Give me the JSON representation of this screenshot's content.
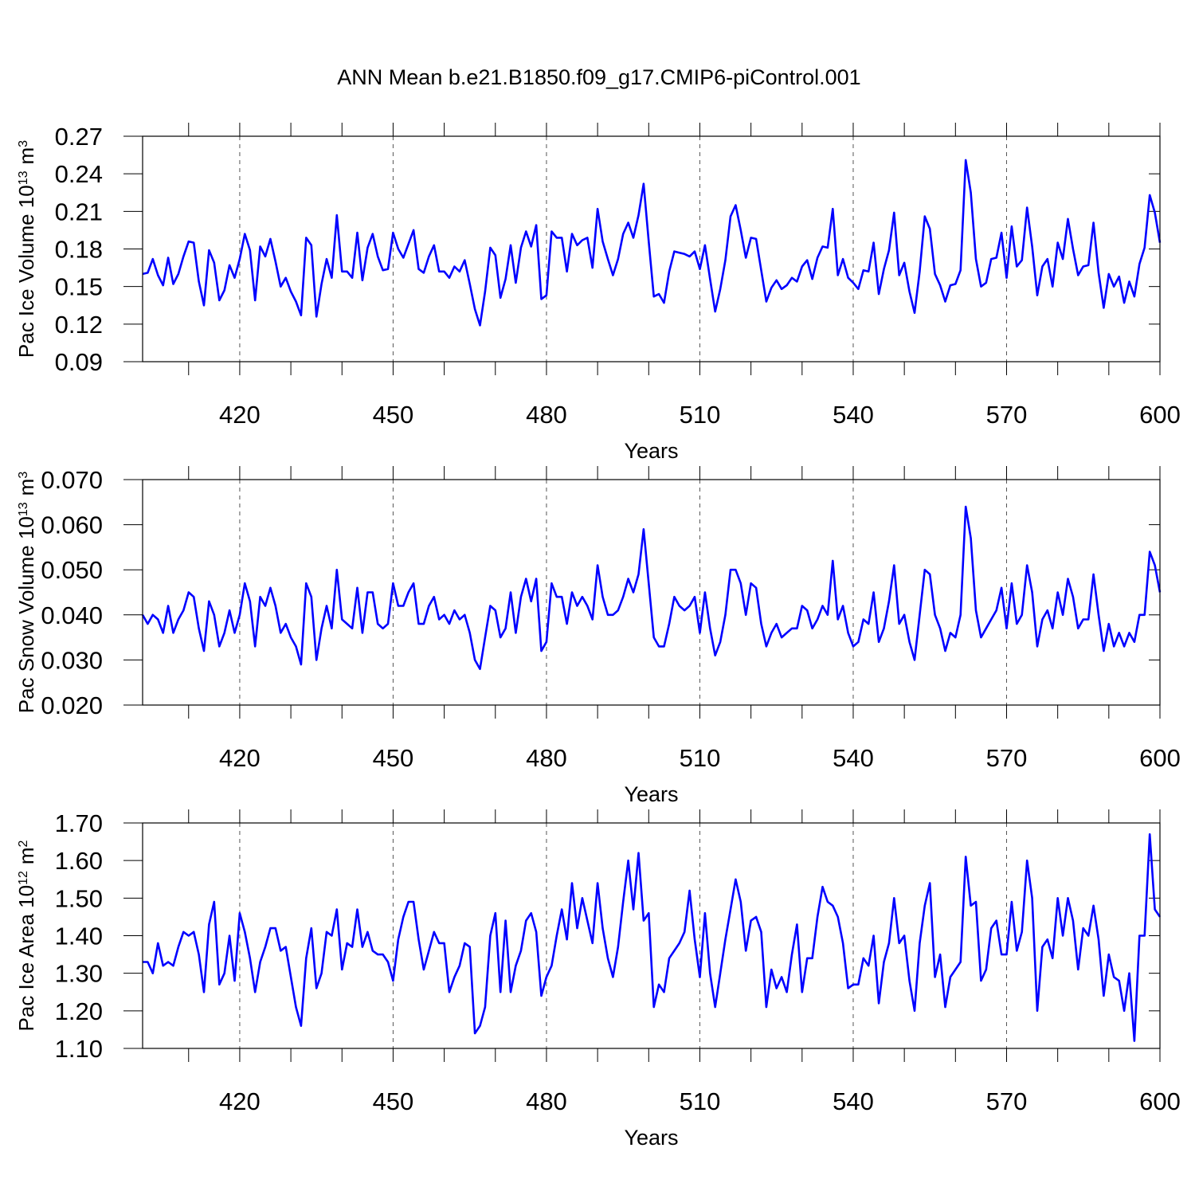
{
  "chart_data": [
    {
      "type": "line",
      "title": "ANN Mean b.e21.B1850.f09_g17.CMIP6-piControl.001",
      "ylabel": [
        "Pac Ice Volume 10",
        "13",
        "m",
        "3"
      ],
      "xlabel": "Years",
      "color": "#0000ff",
      "xgrid": true,
      "xlim": [
        401,
        600
      ],
      "xticks": [
        420,
        450,
        480,
        510,
        540,
        570,
        600
      ],
      "xminorticks": [
        410,
        430,
        440,
        460,
        470,
        490,
        500,
        520,
        530,
        550,
        560,
        580,
        590
      ],
      "ylim": [
        0.09,
        0.27
      ],
      "yticks": [
        0.09,
        0.12,
        0.15,
        0.18,
        0.21,
        0.24,
        0.27
      ],
      "x": [
        401,
        402,
        403,
        404,
        405,
        406,
        407,
        408,
        409,
        410,
        411,
        412,
        413,
        414,
        415,
        416,
        417,
        418,
        419,
        420,
        421,
        422,
        423,
        424,
        425,
        426,
        427,
        428,
        429,
        430,
        431,
        432,
        433,
        434,
        435,
        436,
        437,
        438,
        439,
        440,
        441,
        442,
        443,
        444,
        445,
        446,
        447,
        448,
        449,
        450,
        451,
        452,
        453,
        454,
        455,
        456,
        457,
        458,
        459,
        460,
        461,
        462,
        463,
        464,
        465,
        466,
        467,
        468,
        469,
        470,
        471,
        472,
        473,
        474,
        475,
        476,
        477,
        478,
        479,
        480,
        481,
        482,
        483,
        484,
        485,
        486,
        487,
        488,
        489,
        490,
        491,
        492,
        493,
        494,
        495,
        496,
        497,
        498,
        499,
        500,
        501,
        502,
        503,
        504,
        505,
        506,
        507,
        508,
        509,
        510,
        511,
        512,
        513,
        514,
        515,
        516,
        517,
        518,
        519,
        520,
        521,
        522,
        523,
        524,
        525,
        526,
        527,
        528,
        529,
        530,
        531,
        532,
        533,
        534,
        535,
        536,
        537,
        538,
        539,
        540,
        541,
        542,
        543,
        544,
        545,
        546,
        547,
        548,
        549,
        550,
        551,
        552,
        553,
        554,
        555,
        556,
        557,
        558,
        559,
        560,
        561,
        562,
        563,
        564,
        565,
        566,
        567,
        568,
        569,
        570,
        571,
        572,
        573,
        574,
        575,
        576,
        577,
        578,
        579,
        580,
        581,
        582,
        583,
        584,
        585,
        586,
        587,
        588,
        589,
        590,
        591,
        592,
        593,
        594,
        595,
        596,
        597,
        598,
        599,
        600
      ],
      "values": [
        0.16,
        0.161,
        0.172,
        0.159,
        0.151,
        0.173,
        0.152,
        0.16,
        0.174,
        0.186,
        0.185,
        0.154,
        0.135,
        0.179,
        0.169,
        0.139,
        0.147,
        0.167,
        0.157,
        0.172,
        0.192,
        0.179,
        0.139,
        0.182,
        0.174,
        0.188,
        0.17,
        0.15,
        0.157,
        0.146,
        0.138,
        0.127,
        0.189,
        0.183,
        0.126,
        0.152,
        0.172,
        0.157,
        0.207,
        0.162,
        0.162,
        0.157,
        0.193,
        0.155,
        0.181,
        0.192,
        0.174,
        0.163,
        0.164,
        0.193,
        0.18,
        0.173,
        0.184,
        0.195,
        0.164,
        0.161,
        0.174,
        0.183,
        0.162,
        0.162,
        0.157,
        0.166,
        0.162,
        0.171,
        0.152,
        0.132,
        0.119,
        0.146,
        0.181,
        0.175,
        0.141,
        0.156,
        0.183,
        0.153,
        0.181,
        0.194,
        0.182,
        0.199,
        0.14,
        0.143,
        0.194,
        0.189,
        0.189,
        0.162,
        0.192,
        0.183,
        0.187,
        0.189,
        0.165,
        0.212,
        0.186,
        0.172,
        0.159,
        0.172,
        0.192,
        0.201,
        0.189,
        0.207,
        0.232,
        0.186,
        0.142,
        0.144,
        0.137,
        0.162,
        0.178,
        0.177,
        0.176,
        0.174,
        0.178,
        0.164,
        0.183,
        0.156,
        0.13,
        0.148,
        0.171,
        0.206,
        0.215,
        0.195,
        0.173,
        0.189,
        0.188,
        0.163,
        0.138,
        0.149,
        0.155,
        0.148,
        0.151,
        0.157,
        0.154,
        0.166,
        0.171,
        0.156,
        0.173,
        0.182,
        0.181,
        0.212,
        0.159,
        0.172,
        0.157,
        0.153,
        0.148,
        0.163,
        0.162,
        0.185,
        0.144,
        0.164,
        0.179,
        0.209,
        0.159,
        0.169,
        0.146,
        0.129,
        0.162,
        0.206,
        0.196,
        0.16,
        0.151,
        0.138,
        0.151,
        0.152,
        0.163,
        0.251,
        0.225,
        0.172,
        0.15,
        0.153,
        0.172,
        0.173,
        0.193,
        0.157,
        0.198,
        0.166,
        0.171,
        0.213,
        0.182,
        0.143,
        0.166,
        0.172,
        0.15,
        0.185,
        0.172,
        0.204,
        0.18,
        0.159,
        0.166,
        0.167,
        0.201,
        0.161,
        0.133,
        0.16,
        0.15,
        0.158,
        0.137,
        0.154,
        0.142,
        0.168,
        0.181,
        0.223,
        0.209,
        0.185
      ]
    },
    {
      "type": "line",
      "ylabel": [
        "Pac Snow Volume 10",
        "13",
        "m",
        "3"
      ],
      "xlabel": "Years",
      "color": "#0000ff",
      "xgrid": true,
      "xlim": [
        401,
        600
      ],
      "xticks": [
        420,
        450,
        480,
        510,
        540,
        570,
        600
      ],
      "xminorticks": [
        410,
        430,
        440,
        460,
        470,
        490,
        500,
        520,
        530,
        550,
        560,
        580,
        590
      ],
      "ylim": [
        0.02,
        0.07
      ],
      "yticks": [
        {
          "value": 0.02,
          "label": "0.020"
        },
        {
          "value": 0.03,
          "label": "0.030"
        },
        {
          "value": 0.04,
          "label": "0.040"
        },
        {
          "value": 0.05,
          "label": "0.050"
        },
        {
          "value": 0.06,
          "label": "0.060"
        },
        {
          "value": 0.07,
          "label": "0.070"
        }
      ],
      "x": [
        401,
        402,
        403,
        404,
        405,
        406,
        407,
        408,
        409,
        410,
        411,
        412,
        413,
        414,
        415,
        416,
        417,
        418,
        419,
        420,
        421,
        422,
        423,
        424,
        425,
        426,
        427,
        428,
        429,
        430,
        431,
        432,
        433,
        434,
        435,
        436,
        437,
        438,
        439,
        440,
        441,
        442,
        443,
        444,
        445,
        446,
        447,
        448,
        449,
        450,
        451,
        452,
        453,
        454,
        455,
        456,
        457,
        458,
        459,
        460,
        461,
        462,
        463,
        464,
        465,
        466,
        467,
        468,
        469,
        470,
        471,
        472,
        473,
        474,
        475,
        476,
        477,
        478,
        479,
        480,
        481,
        482,
        483,
        484,
        485,
        486,
        487,
        488,
        489,
        490,
        491,
        492,
        493,
        494,
        495,
        496,
        497,
        498,
        499,
        500,
        501,
        502,
        503,
        504,
        505,
        506,
        507,
        508,
        509,
        510,
        511,
        512,
        513,
        514,
        515,
        516,
        517,
        518,
        519,
        520,
        521,
        522,
        523,
        524,
        525,
        526,
        527,
        528,
        529,
        530,
        531,
        532,
        533,
        534,
        535,
        536,
        537,
        538,
        539,
        540,
        541,
        542,
        543,
        544,
        545,
        546,
        547,
        548,
        549,
        550,
        551,
        552,
        553,
        554,
        555,
        556,
        557,
        558,
        559,
        560,
        561,
        562,
        563,
        564,
        565,
        566,
        567,
        568,
        569,
        570,
        571,
        572,
        573,
        574,
        575,
        576,
        577,
        578,
        579,
        580,
        581,
        582,
        583,
        584,
        585,
        586,
        587,
        588,
        589,
        590,
        591,
        592,
        593,
        594,
        595,
        596,
        597,
        598,
        599,
        600
      ],
      "values": [
        0.04,
        0.038,
        0.04,
        0.039,
        0.036,
        0.042,
        0.036,
        0.039,
        0.041,
        0.045,
        0.044,
        0.037,
        0.032,
        0.043,
        0.04,
        0.033,
        0.036,
        0.041,
        0.036,
        0.04,
        0.047,
        0.043,
        0.033,
        0.044,
        0.042,
        0.046,
        0.042,
        0.036,
        0.038,
        0.035,
        0.033,
        0.029,
        0.047,
        0.044,
        0.03,
        0.037,
        0.042,
        0.037,
        0.05,
        0.039,
        0.038,
        0.037,
        0.046,
        0.036,
        0.045,
        0.045,
        0.038,
        0.037,
        0.038,
        0.047,
        0.042,
        0.042,
        0.045,
        0.047,
        0.038,
        0.038,
        0.042,
        0.044,
        0.039,
        0.04,
        0.038,
        0.041,
        0.039,
        0.04,
        0.036,
        0.03,
        0.028,
        0.035,
        0.042,
        0.041,
        0.035,
        0.037,
        0.045,
        0.036,
        0.044,
        0.048,
        0.043,
        0.048,
        0.032,
        0.034,
        0.047,
        0.044,
        0.044,
        0.038,
        0.045,
        0.042,
        0.044,
        0.042,
        0.039,
        0.051,
        0.044,
        0.04,
        0.04,
        0.041,
        0.044,
        0.048,
        0.045,
        0.049,
        0.059,
        0.047,
        0.035,
        0.033,
        0.033,
        0.038,
        0.044,
        0.042,
        0.041,
        0.042,
        0.044,
        0.036,
        0.045,
        0.037,
        0.031,
        0.034,
        0.04,
        0.05,
        0.05,
        0.047,
        0.04,
        0.047,
        0.046,
        0.038,
        0.033,
        0.036,
        0.038,
        0.035,
        0.036,
        0.037,
        0.037,
        0.042,
        0.041,
        0.037,
        0.039,
        0.042,
        0.04,
        0.052,
        0.039,
        0.042,
        0.036,
        0.033,
        0.034,
        0.039,
        0.038,
        0.045,
        0.034,
        0.037,
        0.043,
        0.051,
        0.038,
        0.04,
        0.034,
        0.03,
        0.04,
        0.05,
        0.049,
        0.04,
        0.037,
        0.032,
        0.036,
        0.035,
        0.04,
        0.064,
        0.057,
        0.041,
        0.035,
        0.037,
        0.039,
        0.041,
        0.046,
        0.037,
        0.047,
        0.038,
        0.04,
        0.051,
        0.045,
        0.033,
        0.039,
        0.041,
        0.037,
        0.045,
        0.04,
        0.048,
        0.044,
        0.037,
        0.039,
        0.039,
        0.049,
        0.04,
        0.032,
        0.038,
        0.033,
        0.036,
        0.033,
        0.036,
        0.034,
        0.04,
        0.04,
        0.054,
        0.051,
        0.045
      ]
    },
    {
      "type": "line",
      "ylabel": [
        "Pac Ice Area 10",
        "12",
        "m",
        "2"
      ],
      "xlabel": "Years",
      "color": "#0000ff",
      "xgrid": true,
      "xlim": [
        401,
        600
      ],
      "xticks": [
        420,
        450,
        480,
        510,
        540,
        570,
        600
      ],
      "xminorticks": [
        410,
        430,
        440,
        460,
        470,
        490,
        500,
        520,
        530,
        550,
        560,
        580,
        590
      ],
      "ylim": [
        1.1,
        1.7
      ],
      "yticks": [
        {
          "value": 1.1,
          "label": "1.10"
        },
        {
          "value": 1.2,
          "label": "1.20"
        },
        {
          "value": 1.3,
          "label": "1.30"
        },
        {
          "value": 1.4,
          "label": "1.40"
        },
        {
          "value": 1.5,
          "label": "1.50"
        },
        {
          "value": 1.6,
          "label": "1.60"
        },
        {
          "value": 1.7,
          "label": "1.70"
        }
      ],
      "x": [
        401,
        402,
        403,
        404,
        405,
        406,
        407,
        408,
        409,
        410,
        411,
        412,
        413,
        414,
        415,
        416,
        417,
        418,
        419,
        420,
        421,
        422,
        423,
        424,
        425,
        426,
        427,
        428,
        429,
        430,
        431,
        432,
        433,
        434,
        435,
        436,
        437,
        438,
        439,
        440,
        441,
        442,
        443,
        444,
        445,
        446,
        447,
        448,
        449,
        450,
        451,
        452,
        453,
        454,
        455,
        456,
        457,
        458,
        459,
        460,
        461,
        462,
        463,
        464,
        465,
        466,
        467,
        468,
        469,
        470,
        471,
        472,
        473,
        474,
        475,
        476,
        477,
        478,
        479,
        480,
        481,
        482,
        483,
        484,
        485,
        486,
        487,
        488,
        489,
        490,
        491,
        492,
        493,
        494,
        495,
        496,
        497,
        498,
        499,
        500,
        501,
        502,
        503,
        504,
        505,
        506,
        507,
        508,
        509,
        510,
        511,
        512,
        513,
        514,
        515,
        516,
        517,
        518,
        519,
        520,
        521,
        522,
        523,
        524,
        525,
        526,
        527,
        528,
        529,
        530,
        531,
        532,
        533,
        534,
        535,
        536,
        537,
        538,
        539,
        540,
        541,
        542,
        543,
        544,
        545,
        546,
        547,
        548,
        549,
        550,
        551,
        552,
        553,
        554,
        555,
        556,
        557,
        558,
        559,
        560,
        561,
        562,
        563,
        564,
        565,
        566,
        567,
        568,
        569,
        570,
        571,
        572,
        573,
        574,
        575,
        576,
        577,
        578,
        579,
        580,
        581,
        582,
        583,
        584,
        585,
        586,
        587,
        588,
        589,
        590,
        591,
        592,
        593,
        594,
        595,
        596,
        597,
        598,
        599,
        600
      ],
      "values": [
        1.33,
        1.33,
        1.3,
        1.38,
        1.32,
        1.33,
        1.32,
        1.37,
        1.41,
        1.4,
        1.41,
        1.35,
        1.25,
        1.43,
        1.49,
        1.27,
        1.3,
        1.4,
        1.28,
        1.46,
        1.41,
        1.34,
        1.25,
        1.33,
        1.37,
        1.42,
        1.42,
        1.36,
        1.37,
        1.29,
        1.21,
        1.16,
        1.34,
        1.42,
        1.26,
        1.3,
        1.41,
        1.4,
        1.47,
        1.31,
        1.38,
        1.37,
        1.47,
        1.37,
        1.41,
        1.36,
        1.35,
        1.35,
        1.33,
        1.28,
        1.39,
        1.45,
        1.49,
        1.49,
        1.39,
        1.31,
        1.36,
        1.41,
        1.38,
        1.38,
        1.25,
        1.29,
        1.32,
        1.38,
        1.37,
        1.14,
        1.16,
        1.21,
        1.4,
        1.46,
        1.25,
        1.44,
        1.25,
        1.32,
        1.36,
        1.44,
        1.46,
        1.41,
        1.24,
        1.29,
        1.32,
        1.4,
        1.47,
        1.39,
        1.54,
        1.42,
        1.5,
        1.44,
        1.38,
        1.54,
        1.42,
        1.34,
        1.29,
        1.37,
        1.49,
        1.6,
        1.47,
        1.62,
        1.44,
        1.46,
        1.21,
        1.27,
        1.25,
        1.34,
        1.36,
        1.38,
        1.41,
        1.52,
        1.39,
        1.29,
        1.46,
        1.3,
        1.21,
        1.3,
        1.39,
        1.47,
        1.55,
        1.49,
        1.36,
        1.44,
        1.45,
        1.41,
        1.21,
        1.31,
        1.26,
        1.29,
        1.25,
        1.35,
        1.43,
        1.25,
        1.34,
        1.34,
        1.45,
        1.53,
        1.49,
        1.48,
        1.45,
        1.38,
        1.26,
        1.27,
        1.27,
        1.34,
        1.32,
        1.4,
        1.22,
        1.33,
        1.38,
        1.5,
        1.38,
        1.4,
        1.28,
        1.2,
        1.38,
        1.48,
        1.54,
        1.29,
        1.35,
        1.21,
        1.29,
        1.31,
        1.33,
        1.61,
        1.48,
        1.49,
        1.28,
        1.31,
        1.42,
        1.44,
        1.35,
        1.35,
        1.49,
        1.36,
        1.41,
        1.6,
        1.5,
        1.2,
        1.37,
        1.39,
        1.34,
        1.5,
        1.4,
        1.5,
        1.44,
        1.31,
        1.42,
        1.4,
        1.48,
        1.39,
        1.24,
        1.35,
        1.29,
        1.28,
        1.2,
        1.3,
        1.12,
        1.4,
        1.4,
        1.67,
        1.47,
        1.45
      ]
    }
  ]
}
